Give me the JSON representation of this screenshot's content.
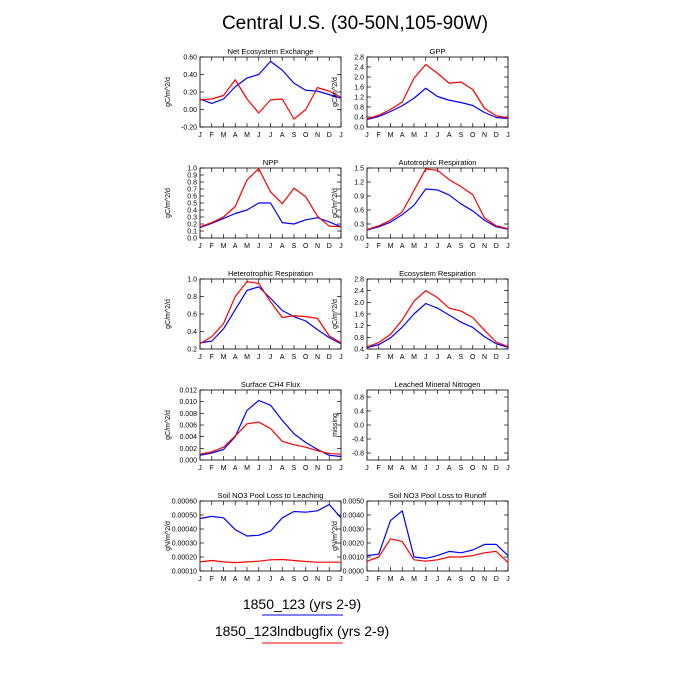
{
  "page_title": "Central U.S. (30-50N,105-90W)",
  "legend": [
    {
      "label": "1850_123 (yrs 2-9)",
      "color": "#0000ff"
    },
    {
      "label": "1850_123lndbugfix (yrs 2-9)",
      "color": "#ff0000"
    }
  ],
  "chart_data": [
    {
      "type": "line",
      "title": "Net Ecosystem Exchange",
      "ylabel": "gC/m^2/d",
      "categories": [
        "J",
        "F",
        "M",
        "A",
        "M",
        "J",
        "J",
        "A",
        "S",
        "O",
        "N",
        "D",
        "J"
      ],
      "yticks": [
        "0.60",
        "0.40",
        "0.20",
        "0.00",
        "-0.20"
      ],
      "ylim": [
        -0.2,
        0.6
      ],
      "series": [
        {
          "color": "#0000ff",
          "values": [
            0.12,
            0.07,
            0.12,
            0.26,
            0.36,
            0.4,
            0.55,
            0.45,
            0.3,
            0.22,
            0.21,
            0.17,
            0.13
          ]
        },
        {
          "color": "#ff0000",
          "values": [
            0.11,
            0.12,
            0.16,
            0.34,
            0.12,
            -0.04,
            0.11,
            0.12,
            -0.11,
            0.0,
            0.25,
            0.21,
            0.14
          ]
        }
      ]
    },
    {
      "type": "line",
      "title": "GPP",
      "ylabel": "gC/m^2/d",
      "categories": [
        "J",
        "F",
        "M",
        "A",
        "M",
        "J",
        "J",
        "A",
        "S",
        "O",
        "N",
        "D",
        "J"
      ],
      "yticks": [
        "2.8",
        "2.4",
        "2.0",
        "1.6",
        "1.2",
        "0.8",
        "0.4",
        "0.0"
      ],
      "ylim": [
        0.0,
        2.8
      ],
      "series": [
        {
          "color": "#0000ff",
          "values": [
            0.3,
            0.42,
            0.62,
            0.85,
            1.15,
            1.55,
            1.22,
            1.07,
            0.98,
            0.86,
            0.58,
            0.38,
            0.34
          ]
        },
        {
          "color": "#ff0000",
          "values": [
            0.32,
            0.47,
            0.7,
            1.0,
            1.95,
            2.5,
            2.15,
            1.75,
            1.8,
            1.5,
            0.75,
            0.45,
            0.36
          ]
        }
      ]
    },
    {
      "type": "line",
      "title": "NPP",
      "ylabel": "gC/m^2/d",
      "categories": [
        "J",
        "F",
        "M",
        "A",
        "M",
        "J",
        "J",
        "A",
        "S",
        "O",
        "N",
        "D",
        "J"
      ],
      "yticks": [
        "1.0",
        "0.9",
        "0.8",
        "0.7",
        "0.6",
        "0.5",
        "0.4",
        "0.3",
        "0.2",
        "0.1",
        "0.0"
      ],
      "ylim": [
        0.0,
        1.0
      ],
      "series": [
        {
          "color": "#0000ff",
          "values": [
            0.15,
            0.21,
            0.28,
            0.35,
            0.4,
            0.5,
            0.5,
            0.22,
            0.2,
            0.26,
            0.29,
            0.23,
            0.16
          ]
        },
        {
          "color": "#ff0000",
          "values": [
            0.16,
            0.22,
            0.3,
            0.45,
            0.83,
            0.99,
            0.66,
            0.49,
            0.71,
            0.59,
            0.31,
            0.17,
            0.16
          ]
        }
      ]
    },
    {
      "type": "line",
      "title": "Autotrophic Respiration",
      "ylabel": "gC/m^2/d",
      "categories": [
        "J",
        "F",
        "M",
        "A",
        "M",
        "J",
        "J",
        "A",
        "S",
        "O",
        "N",
        "D",
        "J"
      ],
      "yticks": [
        "1.5",
        "1.2",
        "0.9",
        "0.6",
        "0.3",
        "0.0"
      ],
      "ylim": [
        0.0,
        1.5
      ],
      "series": [
        {
          "color": "#0000ff",
          "values": [
            0.17,
            0.24,
            0.34,
            0.5,
            0.7,
            1.05,
            1.03,
            0.92,
            0.73,
            0.58,
            0.38,
            0.24,
            0.19
          ]
        },
        {
          "color": "#ff0000",
          "values": [
            0.18,
            0.26,
            0.38,
            0.56,
            1.02,
            1.48,
            1.45,
            1.25,
            1.1,
            0.93,
            0.43,
            0.26,
            0.2
          ]
        }
      ]
    },
    {
      "type": "line",
      "title": "Heterotrophic Respiration",
      "ylabel": "gC/m^2/d",
      "categories": [
        "J",
        "F",
        "M",
        "A",
        "M",
        "J",
        "J",
        "A",
        "S",
        "O",
        "N",
        "D",
        "J"
      ],
      "yticks": [
        "1.0",
        "0.8",
        "0.6",
        "0.4",
        "0.2"
      ],
      "ylim": [
        0.2,
        1.0
      ],
      "series": [
        {
          "color": "#0000ff",
          "values": [
            0.27,
            0.29,
            0.43,
            0.65,
            0.87,
            0.91,
            0.78,
            0.64,
            0.57,
            0.52,
            0.42,
            0.33,
            0.26
          ]
        },
        {
          "color": "#ff0000",
          "values": [
            0.26,
            0.34,
            0.49,
            0.8,
            0.97,
            0.95,
            0.74,
            0.56,
            0.58,
            0.57,
            0.55,
            0.35,
            0.27
          ]
        }
      ]
    },
    {
      "type": "line",
      "title": "Ecosystem Respiration",
      "ylabel": "gC/m^2/d",
      "categories": [
        "J",
        "F",
        "M",
        "A",
        "M",
        "J",
        "J",
        "A",
        "S",
        "O",
        "N",
        "D",
        "J"
      ],
      "yticks": [
        "2.8",
        "2.4",
        "2.0",
        "1.6",
        "1.2",
        "0.8",
        "0.4"
      ],
      "ylim": [
        0.4,
        2.8
      ],
      "series": [
        {
          "color": "#0000ff",
          "values": [
            0.45,
            0.55,
            0.78,
            1.15,
            1.6,
            1.96,
            1.8,
            1.56,
            1.32,
            1.14,
            0.82,
            0.58,
            0.46
          ]
        },
        {
          "color": "#ff0000",
          "values": [
            0.47,
            0.62,
            0.9,
            1.4,
            2.04,
            2.4,
            2.16,
            1.8,
            1.7,
            1.48,
            1.04,
            0.64,
            0.48
          ]
        }
      ]
    },
    {
      "type": "line",
      "title": "Surface CH4 Flux",
      "ylabel": "gC/m^2/d",
      "categories": [
        "J",
        "F",
        "M",
        "A",
        "M",
        "J",
        "J",
        "A",
        "S",
        "O",
        "N",
        "D",
        "J"
      ],
      "yticks": [
        "0.012",
        "0.010",
        "0.008",
        "0.006",
        "0.004",
        "0.002",
        "0.000"
      ],
      "ylim": [
        0.0,
        0.012
      ],
      "series": [
        {
          "color": "#0000ff",
          "values": [
            0.0008,
            0.0012,
            0.0018,
            0.004,
            0.0085,
            0.0102,
            0.0094,
            0.0068,
            0.0045,
            0.003,
            0.0018,
            0.0008,
            0.0006
          ]
        },
        {
          "color": "#ff0000",
          "values": [
            0.001,
            0.0014,
            0.0022,
            0.0041,
            0.0062,
            0.0065,
            0.0054,
            0.0032,
            0.0026,
            0.0022,
            0.0016,
            0.0011,
            0.001
          ]
        }
      ]
    },
    {
      "type": "line",
      "title": "Leached Mineral Nitrogen",
      "ylabel": "missing",
      "categories": [
        "J",
        "F",
        "M",
        "A",
        "M",
        "J",
        "J",
        "A",
        "S",
        "O",
        "N",
        "D",
        "J"
      ],
      "yticks": [
        "0.8",
        "0.4",
        "0.0",
        "-0.4",
        "-0.8"
      ],
      "ylim": [
        -1.0,
        1.0
      ],
      "series": []
    },
    {
      "type": "line",
      "title": "Soil NO3 Pool Loss to Leaching",
      "ylabel": "gN/m^2/d",
      "categories": [
        "J",
        "F",
        "M",
        "A",
        "M",
        "J",
        "J",
        "A",
        "S",
        "O",
        "N",
        "D",
        "J"
      ],
      "yticks": [
        "0.00060",
        "0.00050",
        "0.00040",
        "0.00030",
        "0.00020",
        "0.00010"
      ],
      "ylim": [
        0.0001,
        0.0006
      ],
      "series": [
        {
          "color": "#0000ff",
          "values": [
            0.000475,
            0.00049,
            0.00048,
            0.000395,
            0.00035,
            0.000355,
            0.000385,
            0.00048,
            0.000525,
            0.00052,
            0.00053,
            0.000575,
            0.00048
          ]
        },
        {
          "color": "#ff0000",
          "values": [
            0.000165,
            0.000175,
            0.000165,
            0.00016,
            0.000165,
            0.00017,
            0.00018,
            0.000182,
            0.000175,
            0.000168,
            0.000163,
            0.000163,
            0.000163
          ]
        }
      ]
    },
    {
      "type": "line",
      "title": "Soil NO3 Pool Loss to Runoff",
      "ylabel": "gN/m^2/d",
      "categories": [
        "J",
        "F",
        "M",
        "A",
        "M",
        "J",
        "J",
        "A",
        "S",
        "O",
        "N",
        "D",
        "J"
      ],
      "yticks": [
        "0.0050",
        "0.0040",
        "0.0030",
        "0.0020",
        "0.0010",
        "0.0000"
      ],
      "ylim": [
        0.0,
        0.005
      ],
      "series": [
        {
          "color": "#0000ff",
          "values": [
            0.0011,
            0.0012,
            0.0036,
            0.0043,
            0.001,
            0.0009,
            0.0011,
            0.0014,
            0.0013,
            0.0015,
            0.0019,
            0.0019,
            0.0011
          ]
        },
        {
          "color": "#ff0000",
          "values": [
            0.0007,
            0.001,
            0.0023,
            0.0021,
            0.0008,
            0.0007,
            0.0008,
            0.001,
            0.001,
            0.0011,
            0.0013,
            0.0014,
            0.0006
          ]
        }
      ]
    }
  ]
}
